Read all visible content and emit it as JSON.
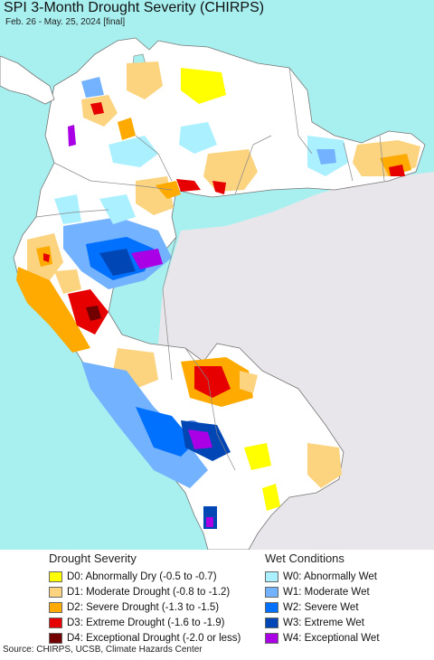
{
  "map": {
    "title": "SPI 3-Month Drought Severity (CHIRPS)",
    "subtitle": "Feb. 26 - May. 25, 2024 [final]",
    "ocean_color": "#a8f0f0",
    "land_color": "#ffffff",
    "outside_land_color": "#e8e6ea"
  },
  "legend": {
    "drought_heading": "Drought Severity",
    "wet_heading": "Wet Conditions",
    "drought_items": [
      {
        "label": "D0: Abnormally Dry (-0.5 to -0.7)",
        "color": "#ffff00"
      },
      {
        "label": "D1: Moderate Drought (-0.8 to -1.2)",
        "color": "#fcd37f"
      },
      {
        "label": "D2: Severe Drought (-1.3 to -1.5)",
        "color": "#ffaa00"
      },
      {
        "label": "D3: Extreme Drought (-1.6 to -1.9)",
        "color": "#e60000"
      },
      {
        "label": "D4: Exceptional Drought (-2.0 or less)",
        "color": "#730000"
      }
    ],
    "wet_items": [
      {
        "label": "W0: Abnormally Wet",
        "color": "#aaf0ff"
      },
      {
        "label": "W1: Moderate Wet",
        "color": "#73b2ff"
      },
      {
        "label": "W2: Severe Wet",
        "color": "#0070ff"
      },
      {
        "label": "W3: Extreme Wet",
        "color": "#0046b4"
      },
      {
        "label": "W4: Exceptional Wet",
        "color": "#a900e6"
      }
    ]
  },
  "source": "Source: CHIRPS, UCSB, Climate Hazards Center"
}
